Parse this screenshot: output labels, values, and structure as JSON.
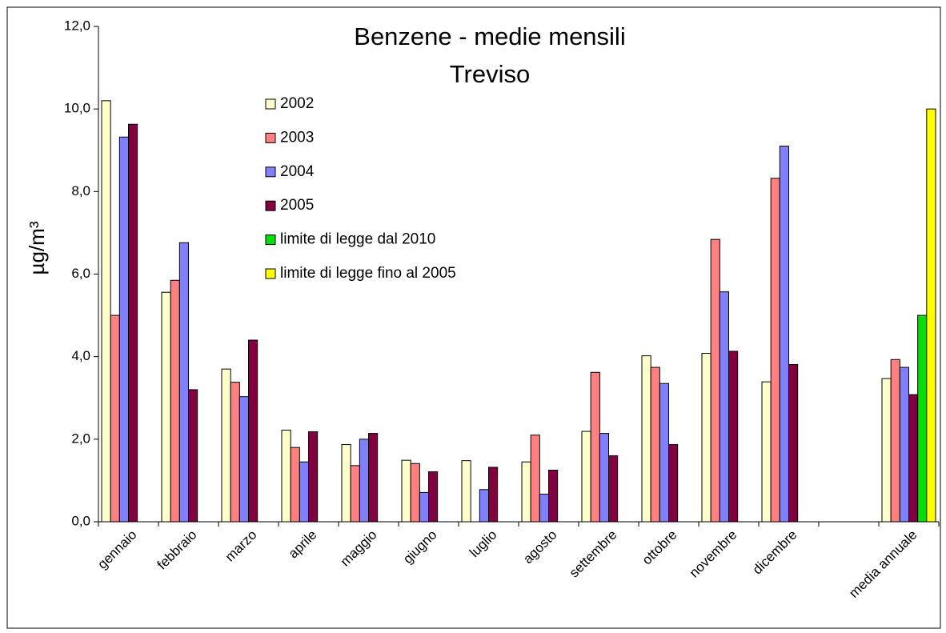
{
  "chart_data": {
    "type": "bar",
    "title": [
      "Benzene - medie mensili",
      "Treviso"
    ],
    "y_label": "µg/m³",
    "categories": [
      "gennaio",
      "febbraio",
      "marzo",
      "aprile",
      "maggio",
      "giugno",
      "luglio",
      "agosto",
      "settembre",
      "ottobre",
      "novembre",
      "dicembre",
      null,
      "media annuale"
    ],
    "series": [
      {
        "name": "2002",
        "color": "#ffffcc",
        "values": [
          10.2,
          5.56,
          3.7,
          2.22,
          1.87,
          1.49,
          1.48,
          1.45,
          2.19,
          4.02,
          4.08,
          3.39,
          null,
          3.47
        ]
      },
      {
        "name": "2003",
        "color": "#ff8080",
        "values": [
          5.0,
          5.85,
          3.38,
          1.8,
          1.36,
          1.41,
          null,
          2.1,
          3.62,
          3.74,
          6.84,
          8.32,
          null,
          3.93
        ]
      },
      {
        "name": "2004",
        "color": "#8080ff",
        "values": [
          9.32,
          6.76,
          3.03,
          1.45,
          2.0,
          0.71,
          0.78,
          0.67,
          2.14,
          3.35,
          5.57,
          9.1,
          null,
          3.74
        ]
      },
      {
        "name": "2005",
        "color": "#800040",
        "values": [
          9.63,
          3.2,
          4.4,
          2.18,
          2.14,
          1.21,
          1.32,
          1.25,
          1.6,
          1.87,
          4.13,
          3.81,
          null,
          3.08
        ]
      },
      {
        "name": "limite di legge dal 2010",
        "color": "#00e000",
        "values": [
          null,
          null,
          null,
          null,
          null,
          null,
          null,
          null,
          null,
          null,
          null,
          null,
          null,
          5.0
        ]
      },
      {
        "name": "limite di legge fino al 2005",
        "color": "#ffff00",
        "values": [
          null,
          null,
          null,
          null,
          null,
          null,
          null,
          null,
          null,
          null,
          null,
          null,
          null,
          10.0
        ]
      }
    ],
    "ylim": [
      0,
      12
    ],
    "yticks": [
      {
        "value": 0,
        "label": "0,0"
      },
      {
        "value": 2,
        "label": "2,0"
      },
      {
        "value": 4,
        "label": "4,0"
      },
      {
        "value": 6,
        "label": "6,0"
      },
      {
        "value": 8,
        "label": "8,0"
      },
      {
        "value": 10,
        "label": "10,0"
      },
      {
        "value": 12,
        "label": "12,0"
      }
    ],
    "grid": false
  }
}
